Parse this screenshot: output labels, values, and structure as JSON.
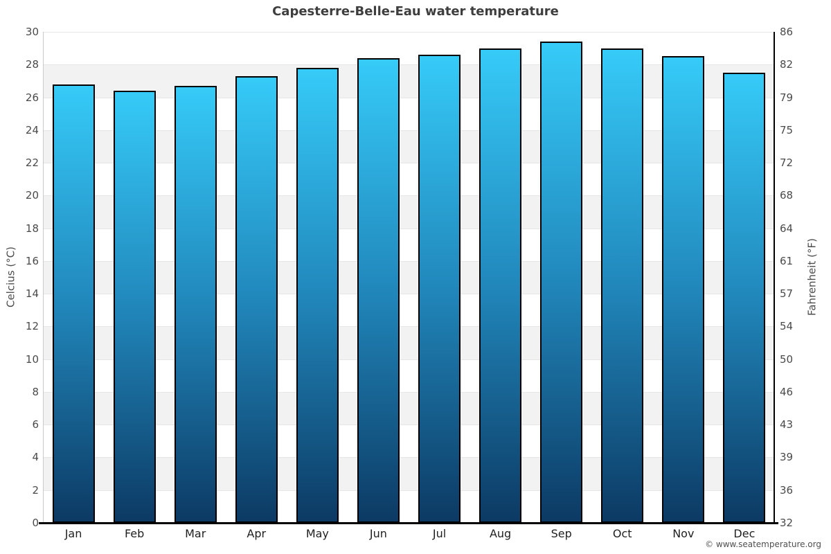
{
  "title": "Capesterre-Belle-Eau water temperature",
  "footer_credit": "© www.seatemperature.org",
  "chart_data": {
    "type": "bar",
    "title": "Capesterre-Belle-Eau water temperature",
    "categories": [
      "Jan",
      "Feb",
      "Mar",
      "Apr",
      "May",
      "Jun",
      "Jul",
      "Aug",
      "Sep",
      "Oct",
      "Nov",
      "Dec"
    ],
    "values": [
      26.8,
      26.4,
      26.7,
      27.3,
      27.8,
      28.4,
      28.6,
      29.0,
      29.4,
      29.0,
      28.5,
      27.5
    ],
    "unit": "°C",
    "xlabel": "",
    "ylabel_left": "Celcius (°C)",
    "ylabel_right": "Fahrenheit (°F)",
    "ylim": [
      0,
      30
    ],
    "ytick_step": 2,
    "yticks_left": [
      30,
      28,
      26,
      24,
      22,
      20,
      18,
      16,
      14,
      12,
      10,
      8,
      6,
      4,
      2,
      0
    ],
    "yticks_right": [
      86,
      82,
      79,
      75,
      72,
      68,
      64,
      61,
      57,
      54,
      50,
      46,
      43,
      39,
      36,
      32
    ],
    "grid": true,
    "legend": "none",
    "colors": {
      "bar_gradient_top": "#36cbf8",
      "bar_gradient_mid": "#2187bb",
      "bar_gradient_bottom": "#0c3a64",
      "bar_border": "#000000",
      "band_fill": "#f2f2f2",
      "gridline": "#e6e6e6",
      "axis_black": "#000000",
      "axis_gray": "#c9c9c9",
      "title_text": "#3e3e3e",
      "tick_text": "#4a4a4a"
    }
  }
}
